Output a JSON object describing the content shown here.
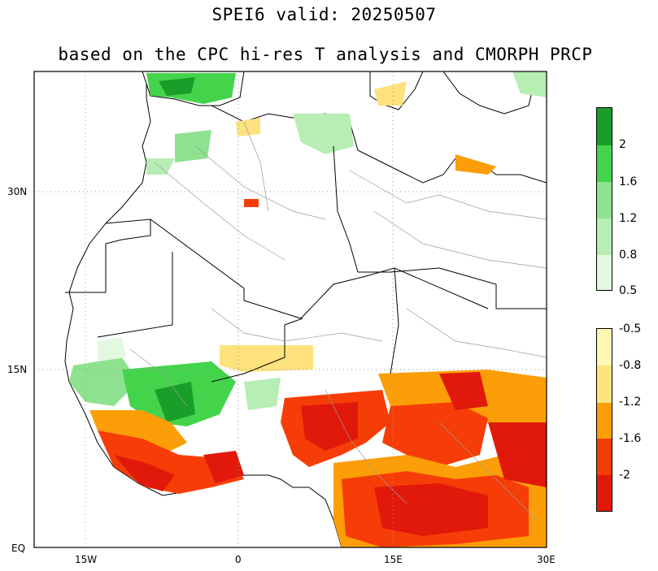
{
  "title": "SPEI6   valid: 20250507",
  "subtitle": "based on the CPC hi-res T analysis and CMORPH PRCP",
  "axes": {
    "x_ticks": [
      "15W",
      "0",
      "15E",
      "30E"
    ],
    "y_ticks": [
      "30N",
      "15N",
      "EQ"
    ]
  },
  "legend_wet": {
    "colors": [
      "#1a9e2a",
      "#44d44c",
      "#8ee28f",
      "#b6eeb4",
      "#e2f8e0"
    ],
    "labels": [
      "2",
      "1.6",
      "1.2",
      "0.8",
      "0.5"
    ]
  },
  "legend_dry": {
    "colors": [
      "#fff7b3",
      "#fde27e",
      "#fb9e07",
      "#f73d07",
      "#e0190b"
    ],
    "labels": [
      "-0.5",
      "-0.8",
      "-1.2",
      "-1.6",
      "-2"
    ]
  },
  "colors": {
    "ocean": "#ffffff",
    "border": "#000000",
    "admin": "#9a9a9a",
    "grid": "#999999"
  }
}
